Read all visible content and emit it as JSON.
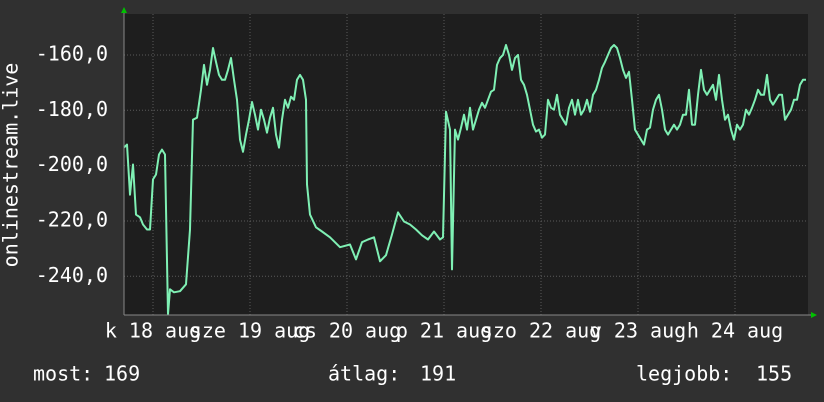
{
  "chart_data": {
    "type": "line",
    "y_label": "onlinestream.live",
    "color": "#7ff0b4",
    "grid": true,
    "xlim": [
      0,
      684
    ],
    "xticks": [
      {
        "value": 29,
        "label": "k 18 aug"
      },
      {
        "value": 126,
        "label": "sze 19 aug"
      },
      {
        "value": 223,
        "label": "cs 20 aug"
      },
      {
        "value": 320,
        "label": "p 21 aug"
      },
      {
        "value": 417,
        "label": "szo 22 aug"
      },
      {
        "value": 514,
        "label": "v 23 aug"
      },
      {
        "value": 611,
        "label": "h 24 aug"
      }
    ],
    "ylim": [
      -254,
      -145.2
    ],
    "yticks": [
      {
        "value": -160,
        "label": "-160,0"
      },
      {
        "value": -180,
        "label": "-180,0"
      },
      {
        "value": -200,
        "label": "-200,0"
      },
      {
        "value": -220,
        "label": "-220,0"
      },
      {
        "value": -240,
        "label": "-240,0"
      }
    ],
    "x": [
      0,
      3,
      6,
      9,
      12,
      16,
      19,
      23,
      26,
      29,
      32,
      35,
      38,
      41,
      44,
      46,
      50,
      56,
      62,
      66,
      69,
      73,
      77,
      80,
      83,
      86,
      89,
      92,
      95,
      98,
      101,
      104,
      107,
      110,
      113,
      116,
      119,
      122,
      125,
      128,
      131,
      134,
      137,
      140,
      143,
      146,
      149,
      152,
      155,
      158,
      161,
      164,
      167,
      170,
      173,
      176,
      179,
      182,
      183,
      186,
      192,
      198,
      206,
      216,
      226,
      232,
      238,
      244,
      250,
      256,
      262,
      268,
      274,
      280,
      286,
      292,
      298,
      304,
      310,
      316,
      319,
      322,
      326,
      328,
      331,
      334,
      337,
      340,
      343,
      346,
      349,
      352,
      355,
      358,
      361,
      364,
      367,
      370,
      373,
      376,
      379,
      382,
      385,
      388,
      391,
      394,
      397,
      400,
      403,
      406,
      409,
      412,
      415,
      418,
      421,
      424,
      427,
      430,
      433,
      436,
      439,
      442,
      445,
      448,
      451,
      454,
      457,
      460,
      463,
      466,
      469,
      472,
      475,
      478,
      481,
      484,
      487,
      490,
      493,
      496,
      499,
      502,
      505,
      508,
      511,
      514,
      517,
      520,
      523,
      526,
      529,
      532,
      535,
      538,
      541,
      544,
      547,
      550,
      553,
      556,
      559,
      562,
      565,
      568,
      571,
      574,
      577,
      580,
      583,
      586,
      589,
      592,
      595,
      598,
      601,
      604,
      607,
      610,
      613,
      616,
      619,
      622,
      625,
      628,
      631,
      634,
      637,
      640,
      643,
      646,
      649,
      652,
      655,
      658,
      661,
      664,
      667,
      670,
      673,
      676,
      679,
      682
    ],
    "values": [
      -193.5,
      -192.4,
      -210.5,
      -199.6,
      -217.7,
      -218.7,
      -221.3,
      -223.1,
      -223.1,
      -205,
      -203.2,
      -196,
      -194.2,
      -196,
      -253.7,
      -244.7,
      -245.8,
      -245.4,
      -242.9,
      -223.1,
      -183.4,
      -182.7,
      -172.6,
      -163.6,
      -170.8,
      -165.4,
      -157.5,
      -162.5,
      -167.2,
      -169,
      -169,
      -165.4,
      -161.1,
      -169,
      -176.2,
      -190.6,
      -195,
      -188.8,
      -183.4,
      -177,
      -181.6,
      -187,
      -179.8,
      -183.4,
      -188.1,
      -182.7,
      -179.1,
      -188.8,
      -193.5,
      -183.4,
      -176.2,
      -179.1,
      -175.1,
      -176.2,
      -169,
      -167.2,
      -169,
      -176.2,
      -206.8,
      -217.7,
      -222.3,
      -223.8,
      -225.9,
      -229.5,
      -228.5,
      -233.9,
      -227.7,
      -226.7,
      -225.9,
      -234.6,
      -232.4,
      -224.9,
      -216.9,
      -220.2,
      -221.3,
      -223.1,
      -225.2,
      -226.7,
      -223.8,
      -226.7,
      -225.9,
      -180.5,
      -187,
      -237.5,
      -187,
      -190.6,
      -186.3,
      -181.6,
      -187,
      -179.1,
      -187,
      -183.4,
      -179.8,
      -177.3,
      -179.1,
      -176.2,
      -173.3,
      -172.6,
      -163.6,
      -161.1,
      -160,
      -156.4,
      -160,
      -165.4,
      -161.1,
      -160,
      -169,
      -170.8,
      -174.4,
      -179.8,
      -185.2,
      -187.7,
      -187,
      -189.9,
      -188.8,
      -176.2,
      -179.1,
      -179.8,
      -174.4,
      -181.6,
      -183.4,
      -185.2,
      -179.1,
      -176.2,
      -181.6,
      -176.2,
      -181.6,
      -179.8,
      -176.2,
      -180.5,
      -174.4,
      -172.6,
      -169,
      -164.7,
      -162.5,
      -160,
      -157.5,
      -156.4,
      -157.5,
      -161.1,
      -165.4,
      -168.3,
      -166.1,
      -176.2,
      -187,
      -188.8,
      -190.6,
      -192.4,
      -187,
      -186.3,
      -179.8,
      -176.2,
      -174.4,
      -179.8,
      -187,
      -188.8,
      -187,
      -185.2,
      -187,
      -185.2,
      -181.6,
      -181.6,
      -172.6,
      -185.2,
      -185.2,
      -174.4,
      -165.4,
      -172.6,
      -174.4,
      -172.6,
      -170.8,
      -176.2,
      -167.2,
      -176.2,
      -183.4,
      -181.6,
      -187,
      -190.6,
      -185.2,
      -187,
      -185.2,
      -179.8,
      -181.6,
      -179.1,
      -176.2,
      -172.6,
      -174.4,
      -174.4,
      -167.2,
      -176.2,
      -178,
      -176.2,
      -174.4,
      -174.4,
      -183.4,
      -181.6,
      -179.8,
      -176.2,
      -176.2,
      -170.8,
      -169,
      -169
    ],
    "footer": [
      {
        "label": "most:",
        "value": "169"
      },
      {
        "label": "átlag:",
        "value": "191"
      },
      {
        "label": "legjobb:",
        "value": "155"
      }
    ]
  }
}
